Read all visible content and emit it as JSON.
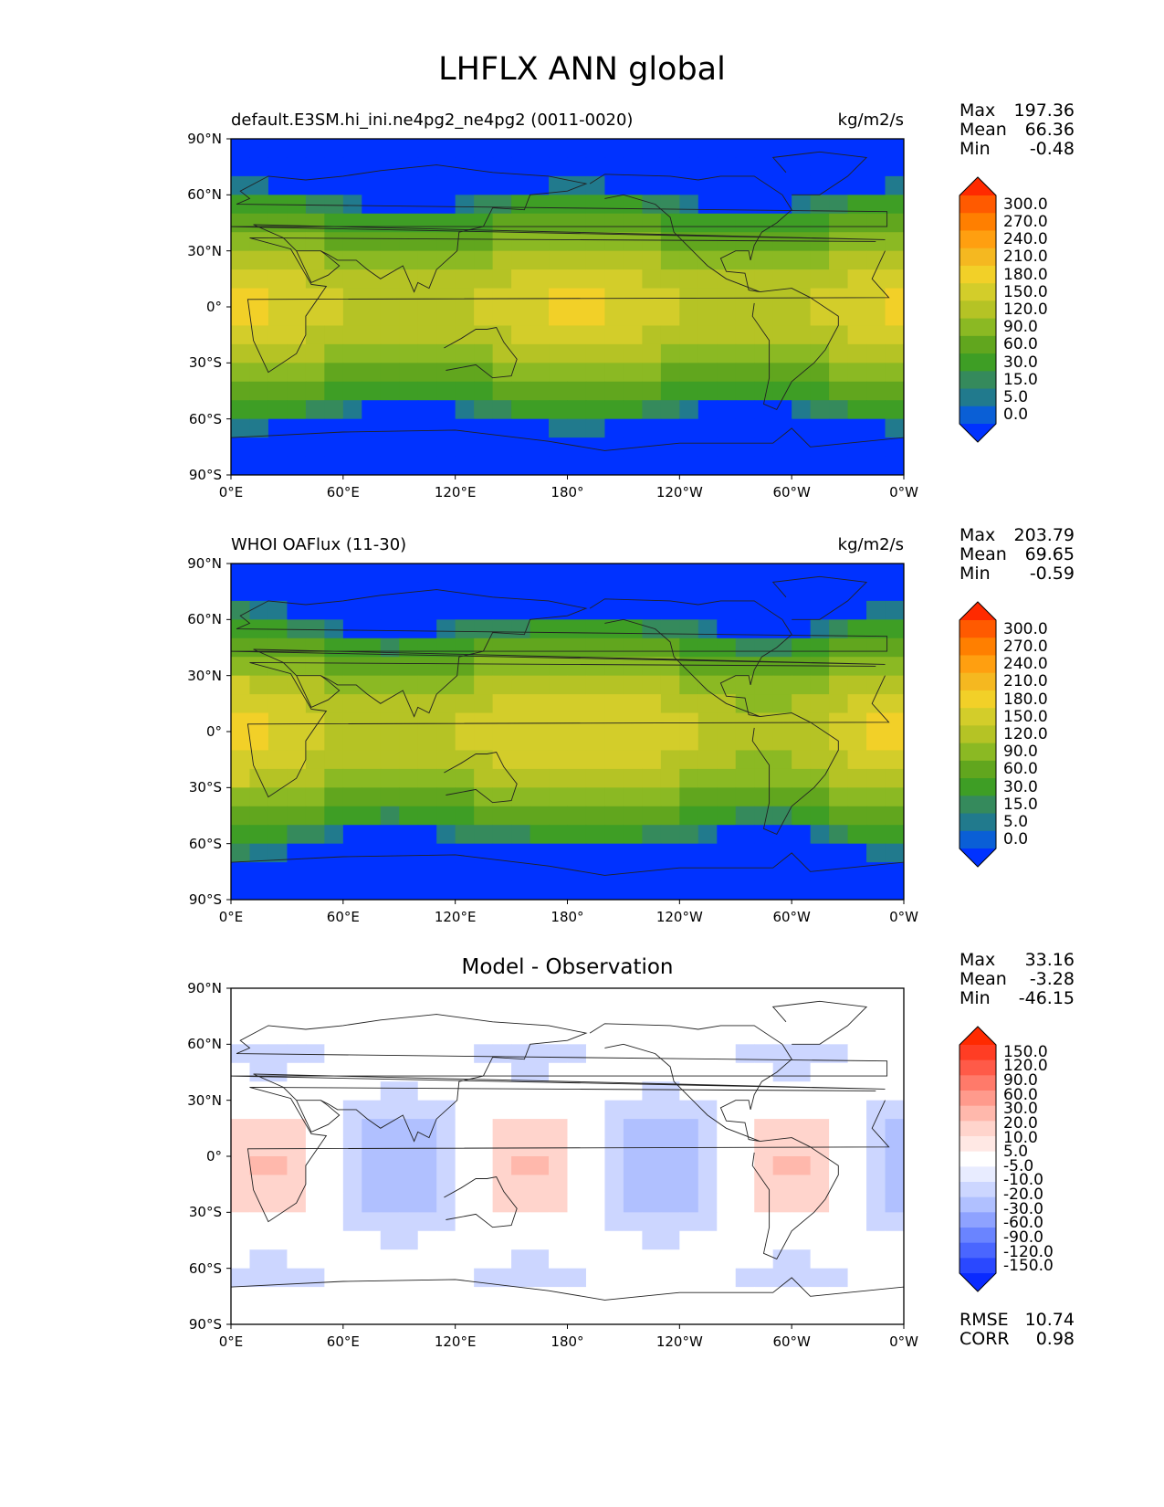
{
  "title": "LHFLX ANN global",
  "lon_ticks": [
    "0°E",
    "60°E",
    "120°E",
    "180°",
    "120°W",
    "60°W",
    "0°W"
  ],
  "lat_ticks": [
    "90°N",
    "60°N",
    "30°N",
    "0°",
    "30°S",
    "60°S",
    "90°S"
  ],
  "panels": [
    {
      "name": "model",
      "left_title": "default.E3SM.hi_ini.ne4pg2_ne4pg2 (0011-0020)",
      "right_title": "kg/m2/s",
      "center_title": "",
      "stats": {
        "max_label": "Max",
        "max": "197.36",
        "mean_label": "Mean",
        "mean": "66.36",
        "min_label": "Min",
        "min": "-0.48"
      },
      "colorbar": {
        "levels": [
          "300.0",
          "270.0",
          "240.0",
          "210.0",
          "180.0",
          "150.0",
          "120.0",
          "90.0",
          "60.0",
          "30.0",
          "15.0",
          "5.0",
          "0.0"
        ],
        "colors": [
          "#ff2a00",
          "#ff5a00",
          "#ff7f00",
          "#ff9f10",
          "#f5b820",
          "#f2d028",
          "#d3cd2a",
          "#b5c325",
          "#8bb923",
          "#61a61e",
          "#3e9e25",
          "#358a5c",
          "#217a8d",
          "#0a5fd6",
          "#0032ff"
        ]
      }
    },
    {
      "name": "observation",
      "left_title": "WHOI OAFlux (11-30)",
      "right_title": "kg/m2/s",
      "center_title": "",
      "stats": {
        "max_label": "Max",
        "max": "203.79",
        "mean_label": "Mean",
        "mean": "69.65",
        "min_label": "Min",
        "min": "-0.59"
      },
      "colorbar": {
        "levels": [
          "300.0",
          "270.0",
          "240.0",
          "210.0",
          "180.0",
          "150.0",
          "120.0",
          "90.0",
          "60.0",
          "30.0",
          "15.0",
          "5.0",
          "0.0"
        ],
        "colors": [
          "#ff2a00",
          "#ff5a00",
          "#ff7f00",
          "#ff9f10",
          "#f5b820",
          "#f2d028",
          "#d3cd2a",
          "#b5c325",
          "#8bb923",
          "#61a61e",
          "#3e9e25",
          "#358a5c",
          "#217a8d",
          "#0a5fd6",
          "#0032ff"
        ]
      }
    },
    {
      "name": "difference",
      "left_title": "",
      "right_title": "",
      "center_title": "Model - Observation",
      "stats": {
        "max_label": "Max",
        "max": "33.16",
        "mean_label": "Mean",
        "mean": "-3.28",
        "min_label": "Min",
        "min": "-46.15"
      },
      "colorbar": {
        "levels": [
          "150.0",
          "120.0",
          "90.0",
          "60.0",
          "30.0",
          "20.0",
          "10.0",
          "5.0",
          "-5.0",
          "-10.0",
          "-20.0",
          "-30.0",
          "-60.0",
          "-90.0",
          "-120.0",
          "-150.0"
        ],
        "colors": [
          "#ff2a00",
          "#ff3d24",
          "#ff5a48",
          "#ff7a6a",
          "#ff9a8c",
          "#ffb8ac",
          "#ffd4cc",
          "#ffe8e4",
          "#ffffff",
          "#e8ecff",
          "#ccd6ff",
          "#b0c0ff",
          "#8ea2ff",
          "#6a84ff",
          "#4a66ff",
          "#2a48ff",
          "#0a2aff"
        ]
      },
      "rmse_label": "RMSE",
      "rmse": "10.74",
      "corr_label": "CORR",
      "corr": "0.98"
    }
  ]
}
